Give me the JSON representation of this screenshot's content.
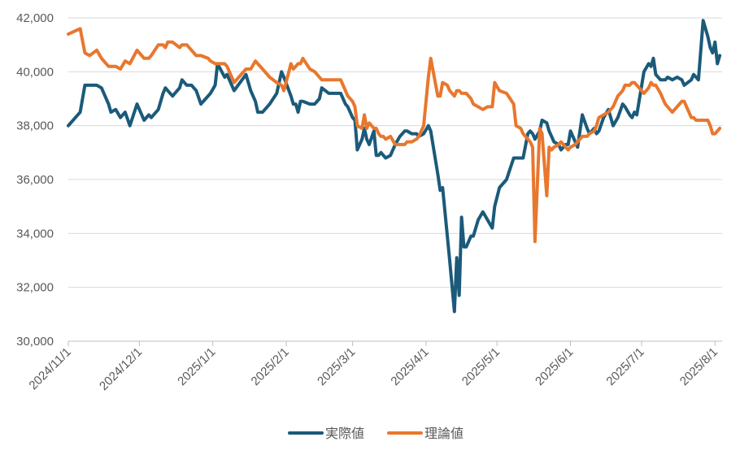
{
  "chart_data": {
    "type": "line",
    "title": "",
    "xlabel": "",
    "ylabel": "",
    "ylim": [
      30000,
      42000
    ],
    "y_ticks": [
      30000,
      32000,
      34000,
      36000,
      38000,
      40000,
      42000
    ],
    "y_tick_labels": [
      "30,000",
      "32,000",
      "34,000",
      "36,000",
      "38,000",
      "40,000",
      "42,000"
    ],
    "x_range": [
      0,
      276
    ],
    "x_ticks": [
      0,
      30,
      61,
      92,
      120,
      151,
      181,
      212,
      242,
      273
    ],
    "x_tick_labels": [
      "2024/11/1",
      "2024/12/1",
      "2025/1/1",
      "2025/2/1",
      "2025/3/1",
      "2025/4/1",
      "2025/5/1",
      "2025/6/1",
      "2025/7/1",
      "2025/8/1"
    ],
    "grid": true,
    "legend_position": "bottom",
    "series": [
      {
        "name": "実際値",
        "color": "#1b5a7a",
        "x": [
          0,
          5,
          7,
          9,
          12,
          14,
          17,
          18,
          20,
          22,
          24,
          26,
          29,
          32,
          34,
          35,
          38,
          40,
          41,
          42,
          44,
          47,
          48,
          50,
          52,
          54,
          56,
          59,
          60,
          62,
          63,
          66,
          67,
          70,
          75,
          77,
          79,
          80,
          82,
          85,
          88,
          90,
          91,
          94,
          95,
          96,
          97,
          98,
          99,
          102,
          104,
          106,
          107,
          110,
          112,
          115,
          117,
          118,
          120,
          121,
          122,
          124,
          125,
          126,
          127,
          129,
          130,
          131,
          132,
          133,
          134,
          136,
          138,
          140,
          142,
          143,
          145,
          147,
          148,
          150,
          152,
          153,
          156,
          157,
          158,
          160,
          161,
          163,
          164,
          165,
          166,
          167,
          168,
          170,
          171,
          173,
          175,
          177,
          179,
          180,
          182,
          185,
          188,
          189,
          191,
          192,
          194,
          195,
          196,
          197,
          199,
          200,
          202,
          203,
          204,
          205,
          207,
          208,
          210,
          211,
          212,
          214,
          215,
          217,
          219,
          220,
          222,
          223,
          224,
          226,
          228,
          230,
          232,
          234,
          235,
          237,
          238,
          239,
          240,
          243,
          245,
          246,
          247,
          248,
          250,
          252,
          253,
          255,
          257,
          259,
          260,
          263,
          264,
          265,
          266,
          268,
          270,
          271,
          272,
          273,
          274,
          275
        ],
        "values": [
          38000,
          38500,
          39500,
          39500,
          39500,
          39400,
          38800,
          38500,
          38600,
          38300,
          38500,
          38000,
          38800,
          38200,
          38400,
          38300,
          38600,
          39200,
          39400,
          39300,
          39100,
          39400,
          39700,
          39500,
          39500,
          39300,
          38800,
          39100,
          39200,
          39500,
          40300,
          39800,
          39900,
          39300,
          39900,
          39300,
          38900,
          38500,
          38500,
          38800,
          39200,
          40000,
          39800,
          39100,
          38800,
          38800,
          38500,
          38900,
          38900,
          38800,
          38800,
          39000,
          39400,
          39200,
          39200,
          39200,
          38800,
          38700,
          38300,
          38200,
          37100,
          37500,
          37900,
          37500,
          37300,
          37800,
          36900,
          36900,
          37000,
          36900,
          36800,
          36900,
          37300,
          37600,
          37800,
          37800,
          37700,
          37700,
          37600,
          37700,
          38000,
          37800,
          36200,
          35600,
          35700,
          33900,
          33000,
          31100,
          33100,
          31700,
          34600,
          33500,
          33500,
          33900,
          33900,
          34500,
          34800,
          34500,
          34200,
          35000,
          35700,
          36000,
          36800,
          36800,
          36800,
          36800,
          37700,
          37800,
          37700,
          37500,
          37800,
          38200,
          38100,
          37800,
          37600,
          37400,
          37300,
          37100,
          37300,
          37300,
          37800,
          37400,
          37200,
          38400,
          37900,
          37700,
          37900,
          37700,
          37800,
          38300,
          38600,
          38000,
          38300,
          38800,
          38700,
          38400,
          38300,
          38500,
          38400,
          40000,
          40300,
          40200,
          40500,
          39900,
          39700,
          39700,
          39800,
          39700,
          39800,
          39700,
          39500,
          39700,
          39900,
          39800,
          39700,
          41900,
          41300,
          40900,
          40700,
          41100,
          40300,
          40600
        ]
      },
      {
        "name": "理論値",
        "color": "#e8772e",
        "x": [
          0,
          5,
          7,
          9,
          12,
          14,
          17,
          18,
          20,
          22,
          24,
          26,
          29,
          32,
          34,
          35,
          38,
          40,
          41,
          42,
          44,
          47,
          48,
          50,
          52,
          54,
          56,
          59,
          60,
          62,
          63,
          66,
          67,
          70,
          75,
          77,
          79,
          80,
          82,
          85,
          88,
          90,
          91,
          94,
          95,
          96,
          97,
          98,
          99,
          102,
          104,
          106,
          107,
          110,
          112,
          115,
          117,
          118,
          120,
          121,
          122,
          124,
          125,
          126,
          127,
          129,
          130,
          131,
          132,
          133,
          134,
          136,
          138,
          140,
          142,
          143,
          145,
          147,
          148,
          150,
          152,
          153,
          156,
          157,
          158,
          160,
          161,
          163,
          164,
          165,
          166,
          167,
          168,
          170,
          171,
          173,
          175,
          177,
          179,
          180,
          182,
          185,
          188,
          189,
          191,
          192,
          194,
          195,
          196,
          197,
          199,
          200,
          202,
          203,
          204,
          205,
          207,
          208,
          210,
          211,
          212,
          214,
          215,
          217,
          219,
          220,
          222,
          223,
          224,
          226,
          228,
          230,
          232,
          234,
          235,
          237,
          238,
          239,
          240,
          243,
          245,
          246,
          247,
          248,
          250,
          252,
          253,
          255,
          257,
          259,
          260,
          263,
          264,
          265,
          266,
          268,
          270,
          271,
          272,
          273,
          274,
          275
        ],
        "values": [
          41400,
          41600,
          40700,
          40600,
          40800,
          40500,
          40200,
          40200,
          40200,
          40100,
          40400,
          40300,
          40800,
          40500,
          40500,
          40600,
          41000,
          41000,
          40900,
          41100,
          41100,
          40900,
          41000,
          41000,
          40800,
          40600,
          40600,
          40500,
          40400,
          40300,
          40300,
          40300,
          40200,
          39600,
          40100,
          40100,
          40400,
          40300,
          40100,
          39800,
          39600,
          39500,
          39300,
          40300,
          40100,
          40200,
          40300,
          40300,
          40500,
          40100,
          40000,
          39800,
          39700,
          39700,
          39700,
          39700,
          39300,
          39100,
          38900,
          38700,
          38000,
          37900,
          38400,
          37900,
          38100,
          37900,
          37900,
          37700,
          37600,
          37600,
          37500,
          37600,
          37300,
          37300,
          37300,
          37400,
          37400,
          37500,
          37600,
          38000,
          39800,
          40500,
          39100,
          39100,
          39600,
          39500,
          39300,
          39100,
          39300,
          39300,
          39200,
          39200,
          39200,
          39000,
          38800,
          38700,
          38600,
          38700,
          38700,
          39600,
          39300,
          39200,
          38800,
          38000,
          37900,
          37700,
          37500,
          37400,
          37200,
          33700,
          37900,
          37700,
          35400,
          37200,
          37100,
          37200,
          37300,
          37400,
          37200,
          37100,
          37200,
          37300,
          37400,
          37600,
          37600,
          37700,
          37800,
          38000,
          38300,
          38400,
          38500,
          38700,
          39100,
          39300,
          39500,
          39500,
          39600,
          39600,
          39500,
          39200,
          39400,
          39600,
          39500,
          39500,
          39200,
          38800,
          38700,
          38500,
          38700,
          38900,
          38900,
          38300,
          38300,
          38200,
          38200,
          38200,
          38200,
          38000,
          37700,
          37700,
          37800,
          37900
        ]
      }
    ]
  }
}
